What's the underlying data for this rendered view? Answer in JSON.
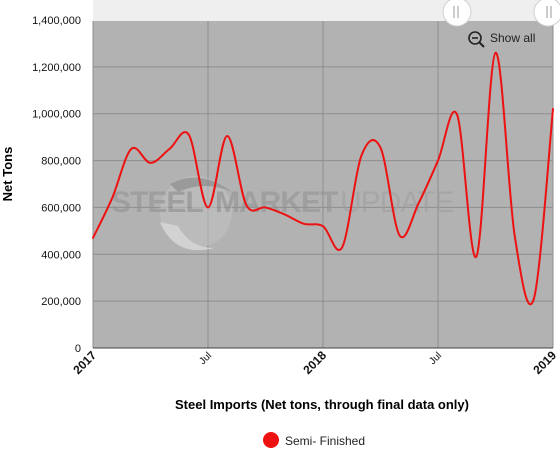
{
  "chart_data": {
    "type": "line",
    "title": "",
    "xlabel": "Steel Imports (Net tons, through final data only)",
    "ylabel": "Net Tons",
    "ylim": [
      0,
      1400000
    ],
    "y_ticks": [
      0,
      200000,
      400000,
      600000,
      800000,
      1000000,
      1200000,
      1400000
    ],
    "y_tick_labels": [
      "0",
      "200,000",
      "400,000",
      "600,000",
      "800,000",
      "1,000,000",
      "1,200,000",
      "1,400,000"
    ],
    "xlim": [
      "2017-01",
      "2019-01"
    ],
    "x_ticks": [
      {
        "x": "2017-01",
        "label": "2017",
        "bold": true
      },
      {
        "x": "2017-07",
        "label": "Jul",
        "bold": false
      },
      {
        "x": "2018-01",
        "label": "2018",
        "bold": true
      },
      {
        "x": "2018-07",
        "label": "Jul",
        "bold": false
      },
      {
        "x": "2019-01",
        "label": "2019",
        "bold": true
      }
    ],
    "grid": true,
    "legend_position": "bottom",
    "series": [
      {
        "name": "Semi- Finished",
        "color": "#ee1111",
        "x": [
          "2017-01",
          "2017-02",
          "2017-03",
          "2017-04",
          "2017-05",
          "2017-06",
          "2017-07",
          "2017-08",
          "2017-09",
          "2017-10",
          "2017-11",
          "2017-12",
          "2018-01",
          "2018-02",
          "2018-03",
          "2018-04",
          "2018-05",
          "2018-06",
          "2018-07",
          "2018-08",
          "2018-09",
          "2018-10",
          "2018-11",
          "2018-12",
          "2019-01"
        ],
        "values": [
          470000,
          640000,
          850000,
          790000,
          850000,
          910000,
          600000,
          905000,
          610000,
          600000,
          570000,
          530000,
          520000,
          430000,
          820000,
          855000,
          480000,
          620000,
          800000,
          995000,
          390000,
          1260000,
          480000,
          210000,
          1020000
        ]
      }
    ]
  },
  "ui": {
    "zoom_reset_label": "Show all",
    "zoom_icon": "zoom-out-icon",
    "navigator_handle_icon": "grip-icon"
  },
  "watermark": {
    "text_a": "STEEL",
    "text_b": "MARKET",
    "text_c": "UPDATE"
  },
  "colors": {
    "plot_bg": "#b2b2b2",
    "grid": "#8e8e8e",
    "series": "#ee1111",
    "navigator_bg": "#efefef"
  }
}
